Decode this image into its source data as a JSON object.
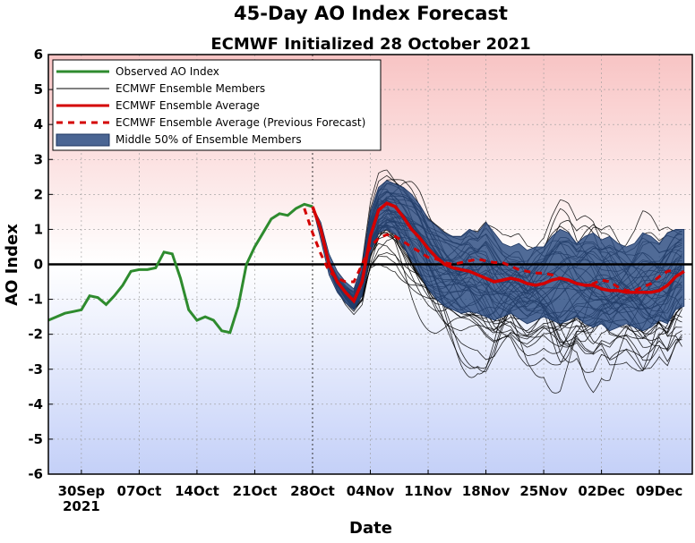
{
  "chart_data": {
    "type": "line",
    "title": "45-Day AO Index Forecast",
    "subtitle": "ECMWF Initialized 28 October 2021",
    "xlabel": "Date",
    "ylabel": "AO Index",
    "xlim": [
      "2021-09-26",
      "2021-12-13"
    ],
    "ylim": [
      -6,
      6
    ],
    "yticks": [
      -6,
      -5,
      -4,
      -3,
      -2,
      -1,
      0,
      1,
      2,
      3,
      4,
      5,
      6
    ],
    "xticks": [
      {
        "date": "2021-09-30",
        "label": "30Sep"
      },
      {
        "date": "2021-10-07",
        "label": "07Oct"
      },
      {
        "date": "2021-10-14",
        "label": "14Oct"
      },
      {
        "date": "2021-10-21",
        "label": "21Oct"
      },
      {
        "date": "2021-10-28",
        "label": "28Oct"
      },
      {
        "date": "2021-11-04",
        "label": "04Nov"
      },
      {
        "date": "2021-11-11",
        "label": "11Nov"
      },
      {
        "date": "2021-11-18",
        "label": "18Nov"
      },
      {
        "date": "2021-11-25",
        "label": "25Nov"
      },
      {
        "date": "2021-12-02",
        "label": "02Dec"
      },
      {
        "date": "2021-12-09",
        "label": "09Dec"
      }
    ],
    "xtick_year_label": "2021",
    "initialization_date": "2021-10-28",
    "grid": true,
    "legend_position": "top-left",
    "colors": {
      "observed": "#2e8b2e",
      "ensemble_member": "#000000",
      "ensemble_average": "#d40000",
      "previous_forecast": "#d40000",
      "middle_50": "#2a4a80",
      "zero_line": "#000000",
      "background_positive": "#f8c4c4",
      "background_negative": "#c4d0f8"
    },
    "legend": [
      {
        "key": "observed",
        "label": "Observed AO Index",
        "style": "solid"
      },
      {
        "key": "ensemble_member",
        "label": "ECMWF Ensemble Members",
        "style": "thin"
      },
      {
        "key": "ensemble_average",
        "label": "ECMWF Ensemble Average",
        "style": "solid"
      },
      {
        "key": "previous_forecast",
        "label": "ECMWF Ensemble Average (Previous Forecast)",
        "style": "dashed"
      },
      {
        "key": "middle_50",
        "label": "Middle 50% of Ensemble Members",
        "style": "patch"
      }
    ],
    "series": [
      {
        "key": "observed",
        "name": "Observed AO Index",
        "points": [
          [
            "2021-09-26",
            -1.6
          ],
          [
            "2021-09-27",
            -1.5
          ],
          [
            "2021-09-28",
            -1.4
          ],
          [
            "2021-09-29",
            -1.35
          ],
          [
            "2021-09-30",
            -1.3
          ],
          [
            "2021-10-01",
            -0.9
          ],
          [
            "2021-10-02",
            -0.95
          ],
          [
            "2021-10-03",
            -1.15
          ],
          [
            "2021-10-04",
            -0.9
          ],
          [
            "2021-10-05",
            -0.6
          ],
          [
            "2021-10-06",
            -0.2
          ],
          [
            "2021-10-07",
            -0.15
          ],
          [
            "2021-10-08",
            -0.15
          ],
          [
            "2021-10-09",
            -0.1
          ],
          [
            "2021-10-10",
            0.35
          ],
          [
            "2021-10-11",
            0.3
          ],
          [
            "2021-10-12",
            -0.4
          ],
          [
            "2021-10-13",
            -1.3
          ],
          [
            "2021-10-14",
            -1.6
          ],
          [
            "2021-10-15",
            -1.5
          ],
          [
            "2021-10-16",
            -1.6
          ],
          [
            "2021-10-17",
            -1.9
          ],
          [
            "2021-10-18",
            -1.95
          ],
          [
            "2021-10-19",
            -1.2
          ],
          [
            "2021-10-20",
            0.0
          ],
          [
            "2021-10-21",
            0.5
          ],
          [
            "2021-10-22",
            0.9
          ],
          [
            "2021-10-23",
            1.3
          ],
          [
            "2021-10-24",
            1.45
          ],
          [
            "2021-10-25",
            1.4
          ],
          [
            "2021-10-26",
            1.6
          ],
          [
            "2021-10-27",
            1.72
          ],
          [
            "2021-10-28",
            1.65
          ]
        ]
      },
      {
        "key": "ensemble_average",
        "name": "ECMWF Ensemble Average",
        "points": [
          [
            "2021-10-28",
            1.65
          ],
          [
            "2021-10-29",
            1.0
          ],
          [
            "2021-10-30",
            0.0
          ],
          [
            "2021-10-31",
            -0.5
          ],
          [
            "2021-11-01",
            -0.8
          ],
          [
            "2021-11-02",
            -1.05
          ],
          [
            "2021-11-03",
            -0.5
          ],
          [
            "2021-11-04",
            0.8
          ],
          [
            "2021-11-05",
            1.55
          ],
          [
            "2021-11-06",
            1.75
          ],
          [
            "2021-11-07",
            1.65
          ],
          [
            "2021-11-08",
            1.35
          ],
          [
            "2021-11-09",
            1.0
          ],
          [
            "2021-11-10",
            0.75
          ],
          [
            "2021-11-11",
            0.45
          ],
          [
            "2021-11-12",
            0.2
          ],
          [
            "2021-11-13",
            0.0
          ],
          [
            "2021-11-14",
            -0.1
          ],
          [
            "2021-11-15",
            -0.15
          ],
          [
            "2021-11-16",
            -0.2
          ],
          [
            "2021-11-17",
            -0.3
          ],
          [
            "2021-11-18",
            -0.4
          ],
          [
            "2021-11-19",
            -0.5
          ],
          [
            "2021-11-20",
            -0.45
          ],
          [
            "2021-11-21",
            -0.4
          ],
          [
            "2021-11-22",
            -0.45
          ],
          [
            "2021-11-23",
            -0.55
          ],
          [
            "2021-11-24",
            -0.6
          ],
          [
            "2021-11-25",
            -0.55
          ],
          [
            "2021-11-26",
            -0.45
          ],
          [
            "2021-11-27",
            -0.4
          ],
          [
            "2021-11-28",
            -0.45
          ],
          [
            "2021-11-29",
            -0.55
          ],
          [
            "2021-11-30",
            -0.6
          ],
          [
            "2021-12-01",
            -0.6
          ],
          [
            "2021-12-02",
            -0.7
          ],
          [
            "2021-12-03",
            -0.75
          ],
          [
            "2021-12-04",
            -0.75
          ],
          [
            "2021-12-05",
            -0.8
          ],
          [
            "2021-12-06",
            -0.8
          ],
          [
            "2021-12-07",
            -0.8
          ],
          [
            "2021-12-08",
            -0.8
          ],
          [
            "2021-12-09",
            -0.75
          ],
          [
            "2021-12-10",
            -0.6
          ],
          [
            "2021-12-11",
            -0.35
          ],
          [
            "2021-12-12",
            -0.2
          ]
        ]
      },
      {
        "key": "previous_forecast",
        "name": "ECMWF Ensemble Average (Previous Forecast)",
        "points": [
          [
            "2021-10-27",
            1.6
          ],
          [
            "2021-10-28",
            0.9
          ],
          [
            "2021-10-29",
            0.3
          ],
          [
            "2021-10-30",
            -0.2
          ],
          [
            "2021-10-31",
            -0.4
          ],
          [
            "2021-11-01",
            -0.5
          ],
          [
            "2021-11-02",
            -0.5
          ],
          [
            "2021-11-03",
            0.0
          ],
          [
            "2021-11-04",
            0.5
          ],
          [
            "2021-11-05",
            0.75
          ],
          [
            "2021-11-06",
            0.85
          ],
          [
            "2021-11-07",
            0.8
          ],
          [
            "2021-11-08",
            0.65
          ],
          [
            "2021-11-09",
            0.5
          ],
          [
            "2021-11-10",
            0.35
          ],
          [
            "2021-11-11",
            0.2
          ],
          [
            "2021-11-12",
            0.15
          ],
          [
            "2021-11-13",
            0.05
          ],
          [
            "2021-11-14",
            0.0
          ],
          [
            "2021-11-15",
            0.05
          ],
          [
            "2021-11-16",
            0.1
          ],
          [
            "2021-11-17",
            0.15
          ],
          [
            "2021-11-18",
            0.1
          ],
          [
            "2021-11-19",
            0.05
          ],
          [
            "2021-11-20",
            0.05
          ],
          [
            "2021-11-21",
            -0.05
          ],
          [
            "2021-11-22",
            -0.15
          ],
          [
            "2021-11-23",
            -0.2
          ],
          [
            "2021-11-24",
            -0.25
          ],
          [
            "2021-11-25",
            -0.25
          ],
          [
            "2021-11-26",
            -0.3
          ],
          [
            "2021-11-27",
            -0.4
          ],
          [
            "2021-11-28",
            -0.45
          ],
          [
            "2021-11-29",
            -0.55
          ],
          [
            "2021-11-30",
            -0.6
          ],
          [
            "2021-12-01",
            -0.55
          ],
          [
            "2021-12-02",
            -0.45
          ],
          [
            "2021-12-03",
            -0.5
          ],
          [
            "2021-12-04",
            -0.65
          ],
          [
            "2021-12-05",
            -0.75
          ],
          [
            "2021-12-06",
            -0.75
          ],
          [
            "2021-12-07",
            -0.65
          ],
          [
            "2021-12-08",
            -0.55
          ],
          [
            "2021-12-09",
            -0.35
          ],
          [
            "2021-12-10",
            -0.2
          ],
          [
            "2021-12-11",
            -0.15
          ]
        ]
      }
    ],
    "middle_50_band": {
      "name": "Middle 50% of Ensemble Members",
      "points": [
        [
          "2021-10-28",
          1.65,
          1.65
        ],
        [
          "2021-10-29",
          0.7,
          1.2
        ],
        [
          "2021-10-30",
          -0.3,
          0.3
        ],
        [
          "2021-10-31",
          -0.8,
          -0.2
        ],
        [
          "2021-11-01",
          -1.1,
          -0.5
        ],
        [
          "2021-11-02",
          -1.3,
          -0.7
        ],
        [
          "2021-11-03",
          -0.9,
          0.0
        ],
        [
          "2021-11-04",
          0.3,
          1.5
        ],
        [
          "2021-11-05",
          0.9,
          2.2
        ],
        [
          "2021-11-06",
          1.0,
          2.4
        ],
        [
          "2021-11-07",
          0.85,
          2.3
        ],
        [
          "2021-11-08",
          0.5,
          2.2
        ],
        [
          "2021-11-09",
          0.1,
          2.0
        ],
        [
          "2021-11-10",
          -0.3,
          1.7
        ],
        [
          "2021-11-11",
          -0.7,
          1.3
        ],
        [
          "2021-11-12",
          -1.0,
          1.1
        ],
        [
          "2021-11-13",
          -1.2,
          0.9
        ],
        [
          "2021-11-14",
          -1.3,
          0.8
        ],
        [
          "2021-11-15",
          -1.4,
          0.8
        ],
        [
          "2021-11-16",
          -1.35,
          1.0
        ],
        [
          "2021-11-17",
          -1.4,
          0.9
        ],
        [
          "2021-11-18",
          -1.5,
          1.2
        ],
        [
          "2021-11-19",
          -1.6,
          0.9
        ],
        [
          "2021-11-20",
          -1.5,
          0.6
        ],
        [
          "2021-11-21",
          -1.4,
          0.5
        ],
        [
          "2021-11-22",
          -1.55,
          0.6
        ],
        [
          "2021-11-23",
          -1.7,
          0.4
        ],
        [
          "2021-11-24",
          -1.6,
          0.5
        ],
        [
          "2021-11-25",
          -1.5,
          0.5
        ],
        [
          "2021-11-26",
          -1.6,
          0.8
        ],
        [
          "2021-11-27",
          -1.7,
          1.0
        ],
        [
          "2021-11-28",
          -1.6,
          0.9
        ],
        [
          "2021-11-29",
          -1.5,
          0.6
        ],
        [
          "2021-11-30",
          -1.7,
          0.8
        ],
        [
          "2021-12-01",
          -1.8,
          0.9
        ],
        [
          "2021-12-02",
          -1.7,
          0.7
        ],
        [
          "2021-12-03",
          -1.9,
          0.8
        ],
        [
          "2021-12-04",
          -1.8,
          0.6
        ],
        [
          "2021-12-05",
          -1.7,
          0.5
        ],
        [
          "2021-12-06",
          -1.8,
          0.6
        ],
        [
          "2021-12-07",
          -1.9,
          0.9
        ],
        [
          "2021-12-08",
          -1.8,
          0.8
        ],
        [
          "2021-12-09",
          -1.6,
          0.6
        ],
        [
          "2021-12-10",
          -1.7,
          0.9
        ],
        [
          "2021-12-11",
          -1.3,
          1.0
        ],
        [
          "2021-12-12",
          -1.2,
          1.0
        ]
      ]
    }
  }
}
